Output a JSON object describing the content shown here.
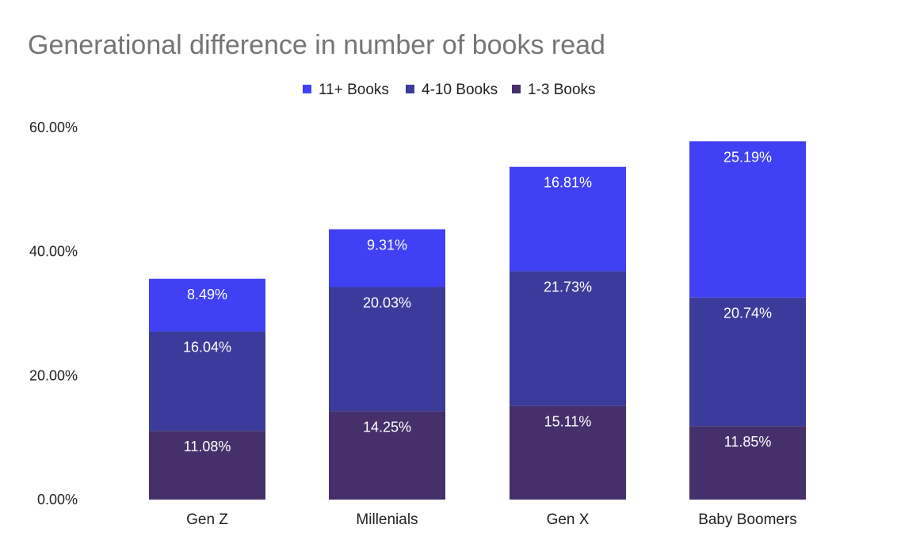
{
  "chart_data": {
    "type": "bar",
    "stacked": true,
    "title": "Generational difference in number of books read",
    "xlabel": "",
    "ylabel": "",
    "categories": [
      "Gen Z",
      "Millenials",
      "Gen X",
      "Baby Boomers"
    ],
    "series": [
      {
        "name": "1-3 Books",
        "values": [
          11.08,
          14.25,
          15.11,
          11.85
        ],
        "color": "#45306b"
      },
      {
        "name": "4-10 Books",
        "values": [
          16.04,
          20.03,
          21.73,
          20.74
        ],
        "color": "#3b3b9b"
      },
      {
        "name": "11+ Books",
        "values": [
          8.49,
          9.31,
          16.81,
          25.19
        ],
        "color": "#4040f5"
      }
    ],
    "legend_order": [
      "11+ Books",
      "4-10 Books",
      "1-3 Books"
    ],
    "ylim": [
      0,
      60
    ],
    "yticks": [
      0,
      20,
      40,
      60
    ],
    "ytick_labels": [
      "0.00%",
      "20.00%",
      "40.00%",
      "60.00%"
    ],
    "data_label_format": "percent-2dp",
    "grid": false,
    "legend_position": "top"
  }
}
